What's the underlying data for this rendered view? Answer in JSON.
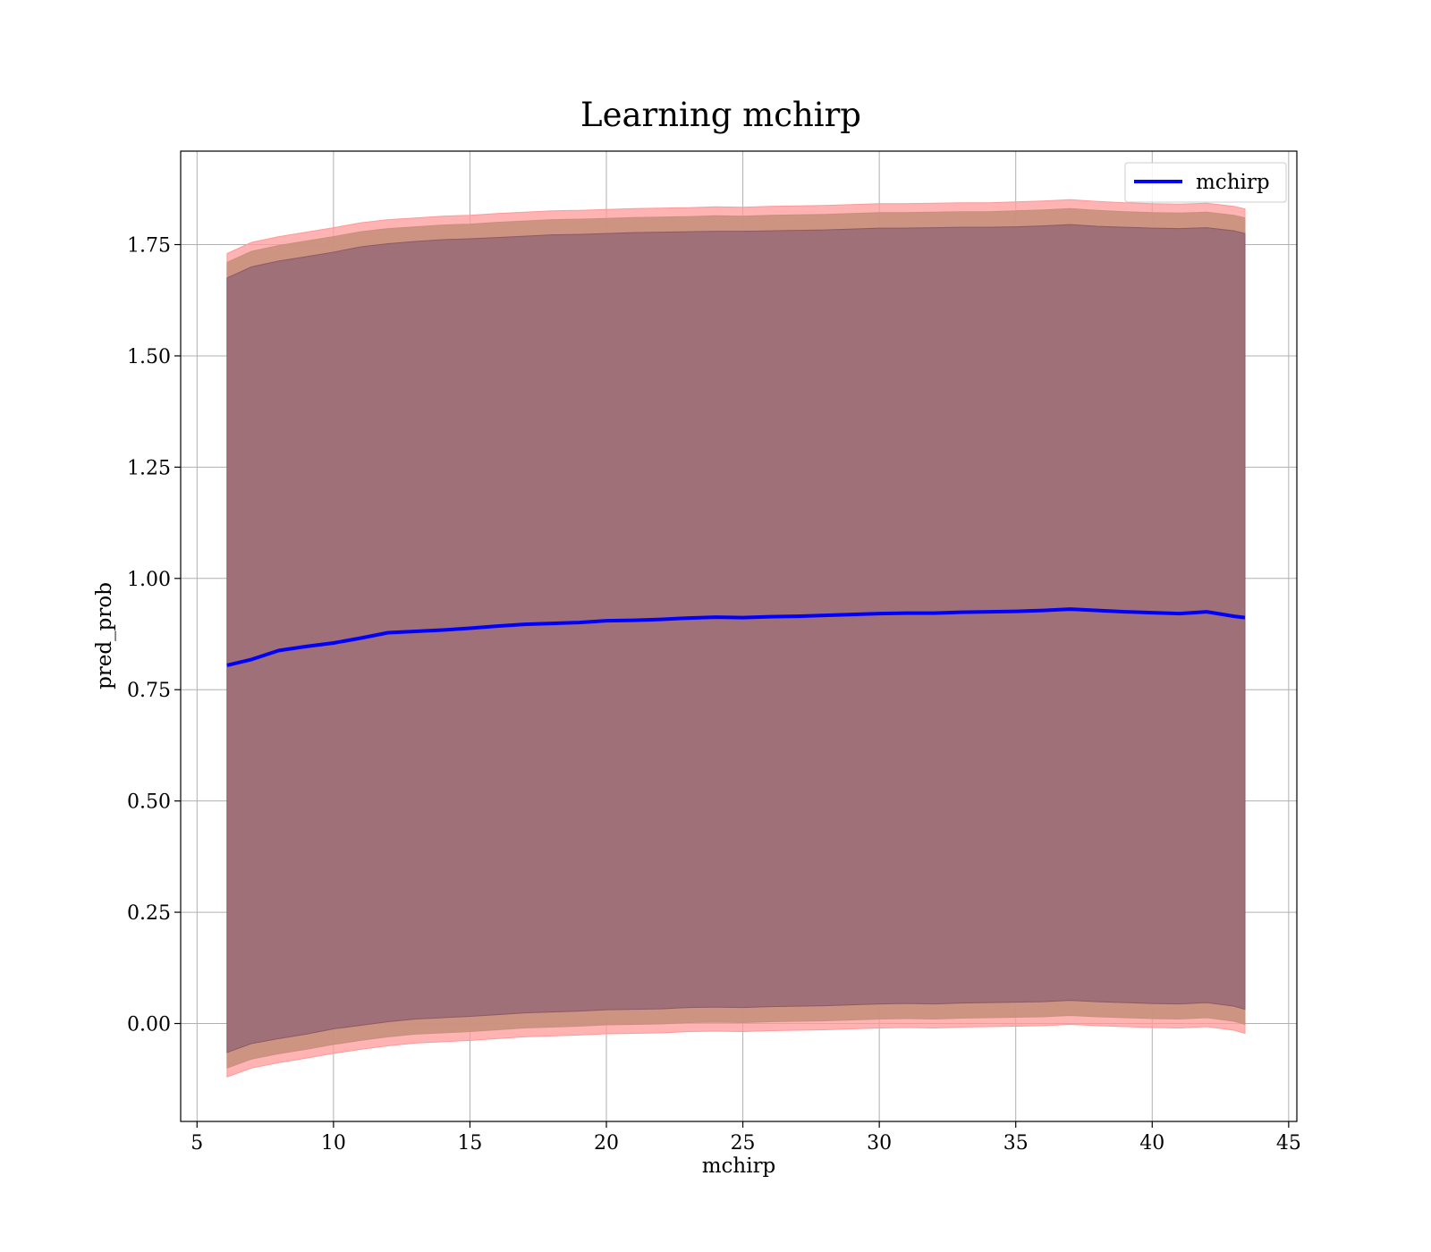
{
  "chart_data": {
    "type": "line",
    "title": "Learning mchirp",
    "xlabel": "mchirp",
    "ylabel": "pred_prob",
    "xlim": [
      4.4,
      45.3
    ],
    "ylim": [
      -0.22,
      1.96
    ],
    "xticks": [
      5,
      10,
      15,
      20,
      25,
      30,
      35,
      40,
      45
    ],
    "xtick_labels": [
      "5",
      "10",
      "15",
      "20",
      "25",
      "30",
      "35",
      "40",
      "45"
    ],
    "yticks": [
      0.0,
      0.25,
      0.5,
      0.75,
      1.0,
      1.25,
      1.5,
      1.75
    ],
    "ytick_labels": [
      "0.00",
      "0.25",
      "0.50",
      "0.75",
      "1.00",
      "1.25",
      "1.50",
      "1.75"
    ],
    "grid": true,
    "legend": {
      "position": "top-right",
      "entries": [
        "mchirp"
      ]
    },
    "colors": {
      "line": "#0000ff",
      "band_outer": "#ff9999",
      "band_middle": "#c8907c",
      "band_inner": "#a07078"
    },
    "series": [
      {
        "name": "mchirp",
        "x": [
          6.1,
          7.0,
          8.0,
          9.0,
          10.0,
          11.0,
          12.0,
          13.0,
          14.0,
          15.0,
          16.0,
          17.0,
          18.0,
          19.0,
          20.0,
          21.0,
          22.0,
          23.0,
          24.0,
          25.0,
          26.0,
          27.0,
          28.0,
          29.0,
          30.0,
          31.0,
          32.0,
          33.0,
          34.0,
          35.0,
          36.0,
          37.0,
          38.0,
          39.0,
          40.0,
          41.0,
          42.0,
          43.0,
          43.4
        ],
        "y": [
          0.805,
          0.818,
          0.838,
          0.847,
          0.855,
          0.866,
          0.878,
          0.881,
          0.884,
          0.888,
          0.893,
          0.897,
          0.899,
          0.901,
          0.905,
          0.906,
          0.908,
          0.911,
          0.913,
          0.912,
          0.914,
          0.915,
          0.917,
          0.919,
          0.921,
          0.922,
          0.922,
          0.924,
          0.925,
          0.926,
          0.928,
          0.931,
          0.928,
          0.925,
          0.923,
          0.921,
          0.925,
          0.915,
          0.912
        ],
        "band_inner_upper": [
          1.675,
          1.7,
          1.713,
          1.723,
          1.733,
          1.745,
          1.752,
          1.757,
          1.761,
          1.763,
          1.766,
          1.769,
          1.772,
          1.773,
          1.775,
          1.777,
          1.778,
          1.779,
          1.78,
          1.78,
          1.781,
          1.782,
          1.783,
          1.785,
          1.787,
          1.787,
          1.788,
          1.789,
          1.789,
          1.79,
          1.792,
          1.795,
          1.791,
          1.789,
          1.787,
          1.786,
          1.788,
          1.781,
          1.775
        ],
        "band_inner_lower": [
          -0.065,
          -0.045,
          -0.034,
          -0.024,
          -0.012,
          -0.004,
          0.004,
          0.01,
          0.013,
          0.016,
          0.02,
          0.024,
          0.026,
          0.028,
          0.031,
          0.032,
          0.033,
          0.036,
          0.037,
          0.036,
          0.038,
          0.039,
          0.04,
          0.042,
          0.044,
          0.045,
          0.044,
          0.046,
          0.047,
          0.048,
          0.049,
          0.052,
          0.049,
          0.047,
          0.045,
          0.044,
          0.047,
          0.039,
          0.032
        ],
        "band_middle_upper": [
          1.71,
          1.735,
          1.748,
          1.758,
          1.768,
          1.779,
          1.786,
          1.79,
          1.794,
          1.796,
          1.8,
          1.803,
          1.806,
          1.807,
          1.809,
          1.811,
          1.812,
          1.813,
          1.815,
          1.814,
          1.816,
          1.817,
          1.818,
          1.82,
          1.822,
          1.822,
          1.823,
          1.824,
          1.824,
          1.826,
          1.828,
          1.831,
          1.827,
          1.824,
          1.822,
          1.821,
          1.823,
          1.816,
          1.81
        ],
        "band_middle_lower": [
          -0.1,
          -0.08,
          -0.068,
          -0.058,
          -0.047,
          -0.038,
          -0.03,
          -0.024,
          -0.021,
          -0.018,
          -0.014,
          -0.01,
          -0.008,
          -0.006,
          -0.003,
          -0.002,
          -0.001,
          0.002,
          0.003,
          0.002,
          0.004,
          0.005,
          0.006,
          0.008,
          0.01,
          0.011,
          0.01,
          0.012,
          0.013,
          0.014,
          0.015,
          0.018,
          0.015,
          0.013,
          0.011,
          0.01,
          0.013,
          0.005,
          -0.002
        ],
        "band_outer_upper": [
          1.73,
          1.755,
          1.768,
          1.778,
          1.788,
          1.799,
          1.806,
          1.81,
          1.814,
          1.816,
          1.82,
          1.823,
          1.826,
          1.827,
          1.829,
          1.831,
          1.832,
          1.833,
          1.835,
          1.834,
          1.836,
          1.837,
          1.838,
          1.84,
          1.842,
          1.842,
          1.843,
          1.844,
          1.844,
          1.846,
          1.848,
          1.851,
          1.847,
          1.844,
          1.842,
          1.841,
          1.843,
          1.836,
          1.83
        ],
        "band_outer_lower": [
          -0.12,
          -0.1,
          -0.088,
          -0.078,
          -0.067,
          -0.058,
          -0.05,
          -0.044,
          -0.041,
          -0.038,
          -0.034,
          -0.03,
          -0.028,
          -0.026,
          -0.023,
          -0.022,
          -0.021,
          -0.018,
          -0.017,
          -0.018,
          -0.016,
          -0.015,
          -0.014,
          -0.012,
          -0.01,
          -0.009,
          -0.01,
          -0.008,
          -0.007,
          -0.006,
          -0.005,
          -0.002,
          -0.005,
          -0.007,
          -0.009,
          -0.01,
          -0.007,
          -0.015,
          -0.022
        ]
      }
    ]
  }
}
